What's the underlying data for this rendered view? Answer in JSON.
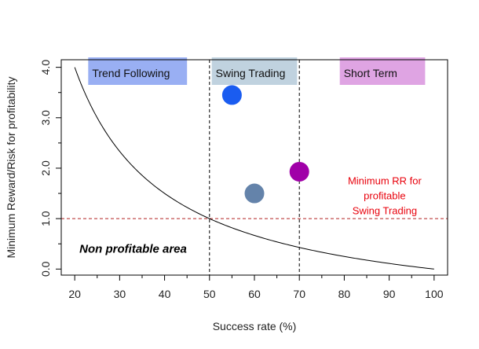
{
  "chart_data": {
    "type": "line",
    "xlabel": "Success rate (%)",
    "ylabel": "Minimum Reward/Risk for profitability",
    "xlim": [
      17,
      103
    ],
    "ylim": [
      -0.12,
      4.15
    ],
    "x_ticks": [
      20,
      30,
      40,
      50,
      60,
      70,
      80,
      90,
      100
    ],
    "x_minor_ticks": [
      25,
      35,
      45,
      55,
      65,
      75,
      85,
      95
    ],
    "y_ticks": [
      0.0,
      1.0,
      2.0,
      3.0,
      4.0
    ],
    "y_tick_labels": [
      "0.0",
      "1.0",
      "2.0",
      "3.0",
      "4.0"
    ],
    "y_minor_ticks": [
      0.5,
      1.5,
      2.5,
      3.5
    ],
    "curve": {
      "name": "Minimum RR = (100 - x) / x",
      "x_range": [
        20,
        100
      ],
      "samples": 161,
      "color": "#000000"
    },
    "vlines": [
      {
        "x": 50,
        "color": "#000000",
        "style": "dashed"
      },
      {
        "x": 70,
        "color": "#000000",
        "style": "dashed"
      }
    ],
    "hline": {
      "y": 1.0,
      "color": "#b22222",
      "style": "dashed"
    },
    "points": [
      {
        "x": 55,
        "y": 3.45,
        "color": "#1a5cf0"
      },
      {
        "x": 60,
        "y": 1.5,
        "color": "#6483aa"
      },
      {
        "x": 70,
        "y": 1.93,
        "color": "#a000a8"
      }
    ],
    "regions": [
      {
        "label": "Trend Following",
        "x_from": 23,
        "x_to": 45,
        "fill": "#8ea6f2",
        "text_color": "#111111"
      },
      {
        "label": "Swing Trading",
        "x_from": 50.5,
        "x_to": 69.5,
        "fill": "#b9cddb",
        "text_color": "#111111"
      },
      {
        "label": "Short Term",
        "x_from": 79,
        "x_to": 98,
        "fill": "#dc9ae0",
        "text_color": "#111111"
      }
    ],
    "annotations": [
      {
        "lines": [
          "Minimum RR for",
          "profitable",
          "Swing Trading"
        ],
        "x": 89,
        "y": 1.35,
        "color": "#e8000b"
      },
      {
        "text": "Non profitable area",
        "x": 33,
        "y": 0.28
      }
    ]
  }
}
